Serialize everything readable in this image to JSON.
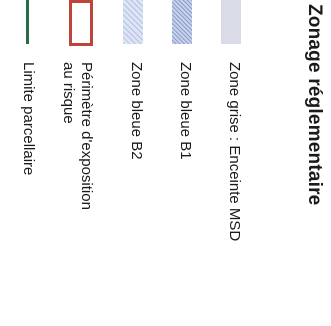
{
  "legend": {
    "title": "Zonage réglementaire",
    "items": [
      {
        "label": "Zone grise : Enceinte MSD",
        "label_line2": "",
        "swatch": "grey-fill-swatch",
        "color": "#d9dbe6"
      },
      {
        "label": "Zone bleue B1",
        "label_line2": "",
        "swatch": "dense-blue-hatch-swatch",
        "color": "#8e9fca"
      },
      {
        "label": "Zone bleue B2",
        "label_line2": "",
        "swatch": "light-blue-hatch-swatch",
        "color": "#b3c1e2"
      },
      {
        "label": "Périmètre d'exposition",
        "label_line2": "au risque",
        "swatch": "red-outline-swatch",
        "color": "#c0443c"
      },
      {
        "label": "Limite parcellaire",
        "label_line2": "",
        "swatch": "dark-green-line-swatch",
        "color": "#2b6a48"
      }
    ]
  }
}
